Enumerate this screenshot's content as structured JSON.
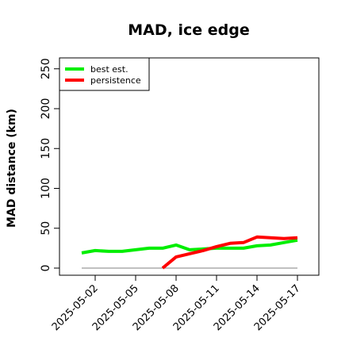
{
  "chart_data": {
    "type": "line",
    "title": "MAD, ice edge",
    "xlabel": "",
    "ylabel": "MAD distance (km)",
    "ylim": [
      0,
      250
    ],
    "yticks": [
      0,
      50,
      100,
      150,
      200,
      250
    ],
    "x": [
      "2025-05-01",
      "2025-05-02",
      "2025-05-03",
      "2025-05-04",
      "2025-05-05",
      "2025-05-06",
      "2025-05-07",
      "2025-05-08",
      "2025-05-09",
      "2025-05-10",
      "2025-05-11",
      "2025-05-12",
      "2025-05-13",
      "2025-05-14",
      "2025-05-15",
      "2025-05-16",
      "2025-05-17"
    ],
    "xtick_labels": [
      "2025-05-02",
      "2025-05-05",
      "2025-05-08",
      "2025-05-11",
      "2025-05-14",
      "2025-05-17"
    ],
    "reference_line": 0,
    "legend_position": "top-left",
    "grid": false,
    "series": [
      {
        "name": "best est.",
        "color": "#00ee00",
        "values": [
          19,
          22,
          21,
          21,
          23,
          25,
          25,
          29,
          23,
          24,
          25,
          25,
          25,
          28,
          29,
          32,
          35
        ]
      },
      {
        "name": "persistence",
        "color": "#ff0000",
        "values": [
          null,
          null,
          null,
          null,
          null,
          null,
          0,
          14,
          18,
          22,
          27,
          31,
          32,
          39,
          38,
          37,
          38
        ]
      }
    ]
  }
}
